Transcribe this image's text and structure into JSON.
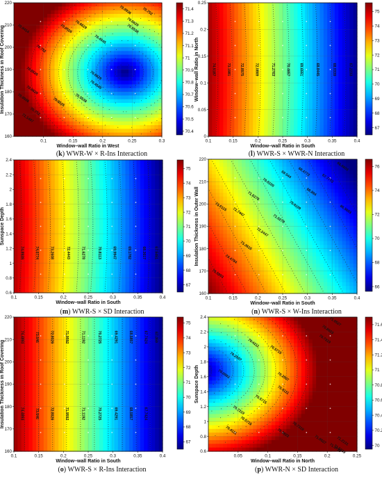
{
  "chart_data": [
    {
      "id": "k",
      "type": "heatmap",
      "caption_letter": "(k)",
      "caption_text": "WWR-W × R-Ins Interaction",
      "xlabel": "Window–wall Ratio in West",
      "ylabel": "Insulation Thickness in Roof Covering",
      "xlim": [
        0.05,
        0.3
      ],
      "ylim": [
        160,
        220
      ],
      "xticks": [
        "0.1",
        "0.15",
        "0.2",
        "0.25",
        "0.3"
      ],
      "yticks": [
        "160",
        "170",
        "180",
        "190",
        "200",
        "210",
        "220"
      ],
      "colorbar": {
        "min": 70.37,
        "max": 71.45,
        "ticks": [
          "70.4",
          "70.5",
          "70.6",
          "70.7",
          "70.8",
          "70.9",
          "71",
          "71.1",
          "71.2",
          "71.3",
          "71.4"
        ]
      },
      "contour_labels": [
        "70.9936",
        "70.752",
        "70.6629",
        "70.5538",
        "70.4545",
        "70.6629",
        "70.8526",
        "70.752",
        "70.9414",
        "70.8526",
        "70.6629",
        "70.4545",
        "70.5538",
        "70.8526",
        "71.1497",
        "70.752",
        "70.9936",
        "70.6629"
      ]
    },
    {
      "id": "l",
      "type": "heatmap",
      "caption_letter": "(l)",
      "caption_text": "WWR-S × WWR-N Interaction",
      "xlabel": "Window–wall Ratio in South",
      "ylabel": "Window–wall Ratio in North",
      "xlim": [
        0.1,
        0.4
      ],
      "ylim": [
        0,
        0.25
      ],
      "xticks": [
        "0.1",
        "0.15",
        "0.2",
        "0.25",
        "0.3",
        "0.35",
        "0.4"
      ],
      "yticks": [
        "0",
        "0.05",
        "0.1",
        "0.15",
        "0.2",
        "0.25"
      ],
      "colorbar": {
        "min": 66.5,
        "max": 75.6,
        "ticks": [
          "67",
          "68",
          "69",
          "70",
          "71",
          "72",
          "73",
          "74",
          "75"
        ]
      },
      "contour_labels": [
        "74.5187",
        "73.1981",
        "72.8975",
        "72.0869",
        "71.2763",
        "70.4657",
        "69.6551",
        "68.8445",
        "68.0339",
        "67.2233"
      ]
    },
    {
      "id": "m",
      "type": "heatmap",
      "caption_letter": "(m)",
      "caption_text": "WWR-S × SD Interaction",
      "xlabel": "Window–wall Ratio in South",
      "ylabel": "Sunspace Depth",
      "xlim": [
        0.1,
        0.4
      ],
      "ylim": [
        0.6,
        2.4
      ],
      "xticks": [
        "0.1",
        "0.15",
        "0.2",
        "0.25",
        "0.3",
        "0.35",
        "0.4"
      ],
      "yticks": [
        "0.6",
        "0.8",
        "1",
        "1.2",
        "1.4",
        "1.6",
        "1.8",
        "2",
        "2.2",
        "2.4"
      ],
      "colorbar": {
        "min": 66.5,
        "max": 75.6,
        "ticks": [
          "67",
          "68",
          "69",
          "70",
          "71",
          "72",
          "73",
          "74",
          "75"
        ]
      },
      "contour_labels": [
        "74.8939",
        "74.0774",
        "73.2608",
        "72.4443",
        "71.6278",
        "70.8113",
        "69.9947",
        "69.1782",
        "68.3617",
        "67.5451"
      ]
    },
    {
      "id": "n",
      "type": "heatmap",
      "caption_letter": "(n)",
      "caption_text": "WWR-S × W-Ins Interaction",
      "xlabel": "Window–wall Ratio in South",
      "ylabel": "Insulation Thickness in Outer Wall",
      "xlim": [
        0.1,
        0.4
      ],
      "ylim": [
        160,
        220
      ],
      "xticks": [
        "0.1",
        "0.15",
        "0.2",
        "0.25",
        "0.3",
        "0.35",
        "0.4"
      ],
      "yticks": [
        "160",
        "170",
        "180",
        "190",
        "200",
        "210",
        "220"
      ],
      "colorbar": {
        "min": 65.6,
        "max": 76.6,
        "ticks": [
          "66",
          "68",
          "70",
          "72",
          "74",
          "76"
        ]
      },
      "contour_labels": [
        "75.5953",
        "74.4784",
        "73.3615",
        "72.2447",
        "71.0278",
        "70.0109",
        "68.894",
        "67.7772",
        "66.6603",
        "73.6115",
        "72.7447",
        "71.6278",
        "70.6109",
        "69.544",
        "68.4772",
        "66.5603"
      ]
    },
    {
      "id": "o",
      "type": "heatmap",
      "caption_letter": "(o)",
      "caption_text": "WWR-S × R-Ins Interaction",
      "xlabel": "Window–wall Ratio in South",
      "ylabel": "Insulation Thickness in Roof Covering",
      "xlim": [
        0.1,
        0.4
      ],
      "ylim": [
        160,
        220
      ],
      "xticks": [
        "0.1",
        "0.15",
        "0.2",
        "0.25",
        "0.3",
        "0.35",
        "0.4"
      ],
      "yticks": [
        "160",
        "170",
        "180",
        "190",
        "200",
        "210",
        "220"
      ],
      "colorbar": {
        "min": 66.5,
        "max": 75.4,
        "ticks": [
          "67",
          "68",
          "69",
          "70",
          "71",
          "72",
          "73",
          "74",
          "75"
        ]
      },
      "contour_labels": [
        "74.4893",
        "73.646",
        "72.8026",
        "71.9592",
        "71.1192",
        "70.2725",
        "69.4291",
        "68.5857",
        "67.7424",
        "67.059",
        "74.4893",
        "73.646",
        "72.8026",
        "71.9592",
        "71.1192",
        "70.2725",
        "69.4291",
        "68.5857",
        "67.7424"
      ]
    },
    {
      "id": "p",
      "type": "heatmap",
      "caption_letter": "(p)",
      "caption_text": "WWR-N × SD Interaction",
      "xlabel": "Window–wall Ratio in North",
      "ylabel": "Sunspace Depth",
      "xlim": [
        0,
        0.25
      ],
      "ylim": [
        0.6,
        2.4
      ],
      "xticks": [
        "0.05",
        "0.1",
        "0.15",
        "0.2",
        "0.25"
      ],
      "yticks": [
        "0.6",
        "0.8",
        "1",
        "1.2",
        "1.4",
        "1.6",
        "1.8",
        "2",
        "2.2",
        "2.4"
      ],
      "colorbar": {
        "min": 69.95,
        "max": 71.7,
        "ticks": [
          "70",
          "70.2",
          "70.4",
          "70.6",
          "70.8",
          "71",
          "71.2",
          "71.4",
          "71.6"
        ]
      },
      "contour_labels": [
        "71.0527",
        "70.8923",
        "70.7319",
        "70.5715",
        "70.4111",
        "70.2507",
        "70.0903",
        "70.7319",
        "70.5715",
        "70.4111",
        "70.2507",
        "70.5715",
        "70.4111",
        "70.7319",
        "70.8923",
        "71.0527",
        "71.2131",
        "71.3735",
        "71.5339"
      ]
    }
  ]
}
